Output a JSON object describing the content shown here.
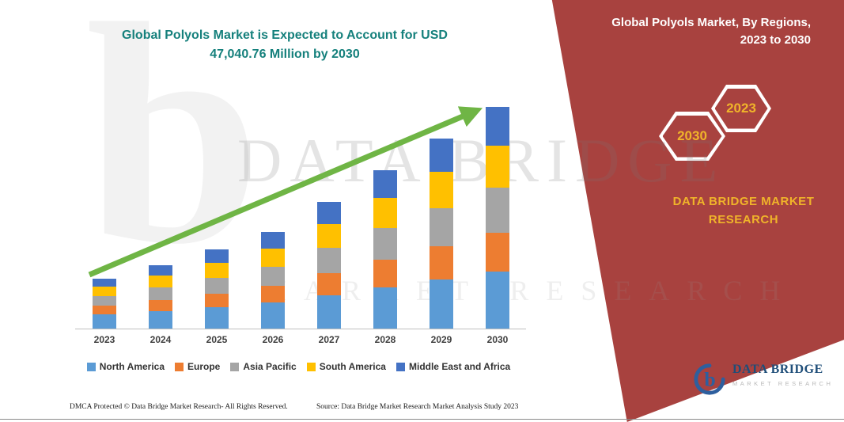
{
  "header": {
    "title_line1": "Global Polyols Market is Expected to Account for USD",
    "title_line2": "47,040.76 Million  by 2030",
    "title_color": "#15807C"
  },
  "banner": {
    "title_line1": "Global Polyols Market, By Regions,",
    "title_line2": "2023 to 2030",
    "hexagons": [
      "2030",
      "2023"
    ],
    "brand_line1": "DATA BRIDGE MARKET",
    "brand_line2": "RESEARCH",
    "bg_color": "#A8423F",
    "accent_color": "#F0B42A",
    "hex_border_color": "#FFFFFF"
  },
  "watermark": {
    "letter": "b",
    "line1": "DATA BRIDGE",
    "line2": "MARKET RESEARCH"
  },
  "chart_data": {
    "type": "bar",
    "stacked": true,
    "title": "Global Polyols Market is Expected to Account for USD 47,040.76 Million by 2030",
    "xlabel": "",
    "ylabel": "",
    "units": "USD Million (segment values estimated from bar heights; 2030 total stated as 47,040.76)",
    "categories": [
      "2023",
      "2024",
      "2025",
      "2026",
      "2027",
      "2028",
      "2029",
      "2030"
    ],
    "series": [
      {
        "name": "North America",
        "color": "#5B9BD5",
        "values": [
          3024,
          3696,
          4536,
          5544,
          7056,
          8736,
          10416,
          12096
        ]
      },
      {
        "name": "Europe",
        "color": "#ED7D31",
        "values": [
          1848,
          2352,
          2856,
          3528,
          4704,
          5880,
          7056,
          8232
        ]
      },
      {
        "name": "Asia Pacific",
        "color": "#A5A5A5",
        "values": [
          2016,
          2688,
          3360,
          4032,
          5376,
          6720,
          8064,
          9576
        ]
      },
      {
        "name": "South America",
        "color": "#FFC000",
        "values": [
          2016,
          2520,
          3192,
          3864,
          5040,
          6384,
          7728,
          8904
        ]
      },
      {
        "name": "Middle East and Africa",
        "color": "#4472C4",
        "values": [
          1680,
          2184,
          2856,
          3528,
          4704,
          5880,
          7056,
          8232
        ]
      }
    ],
    "totals": [
      10584,
      13440,
      16800,
      20496,
      26880,
      33600,
      40320,
      47040
    ],
    "ylim": [
      0,
      50000
    ],
    "grid": false,
    "legend_position": "bottom",
    "trend_arrow": true,
    "trend_arrow_color": "#6FB545"
  },
  "footer": {
    "dmca": "DMCA Protected © Data Bridge Market Research-  All Rights Reserved.",
    "source": "Source: Data Bridge Market Research  Market Analysis Study 2023"
  },
  "logo": {
    "name": "DATA BRIDGE",
    "subtitle": "MARKET RESEARCH"
  }
}
